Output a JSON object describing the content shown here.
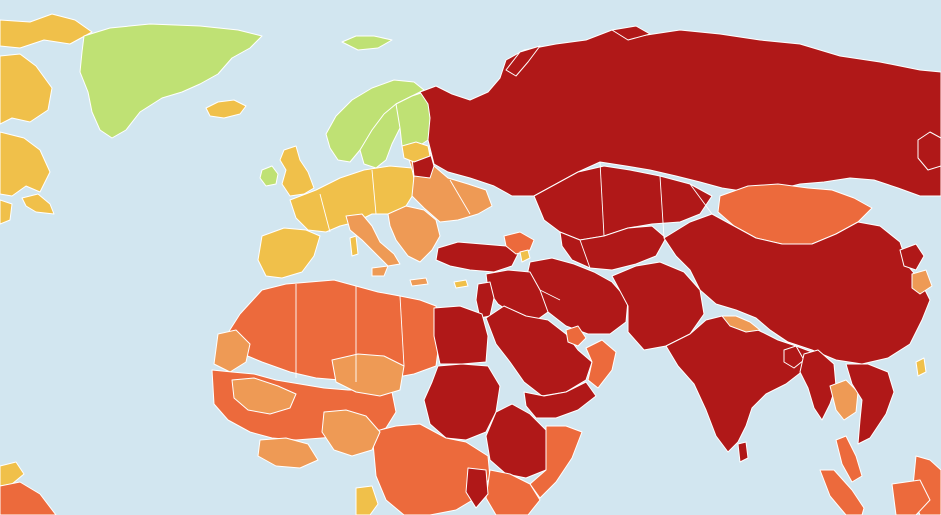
{
  "map": {
    "palette": {
      "ocean": "#d2e6f0",
      "good": "#bfe174",
      "satisfactory": "#f0c04a",
      "problematic": "#ee9a55",
      "difficult": "#ec6a3c",
      "very_serious": "#b01818"
    },
    "regions": [
      {
        "id": "greenland",
        "status": "good"
      },
      {
        "id": "scandinavia",
        "status": "good"
      },
      {
        "id": "canada",
        "status": "satisfactory"
      },
      {
        "id": "western-europe",
        "status": "satisfactory"
      },
      {
        "id": "eastern-europe",
        "status": "problematic"
      },
      {
        "id": "russia",
        "status": "very_serious"
      },
      {
        "id": "central-asia",
        "status": "very_serious"
      },
      {
        "id": "middle-east",
        "status": "very_serious"
      },
      {
        "id": "south-asia",
        "status": "very_serious"
      },
      {
        "id": "china",
        "status": "very_serious"
      },
      {
        "id": "mongolia",
        "status": "difficult"
      },
      {
        "id": "north-africa",
        "status": "difficult"
      },
      {
        "id": "west-africa",
        "status": "difficult"
      },
      {
        "id": "egypt-sudan",
        "status": "very_serious"
      },
      {
        "id": "horn-of-africa",
        "status": "very_serious"
      }
    ]
  }
}
